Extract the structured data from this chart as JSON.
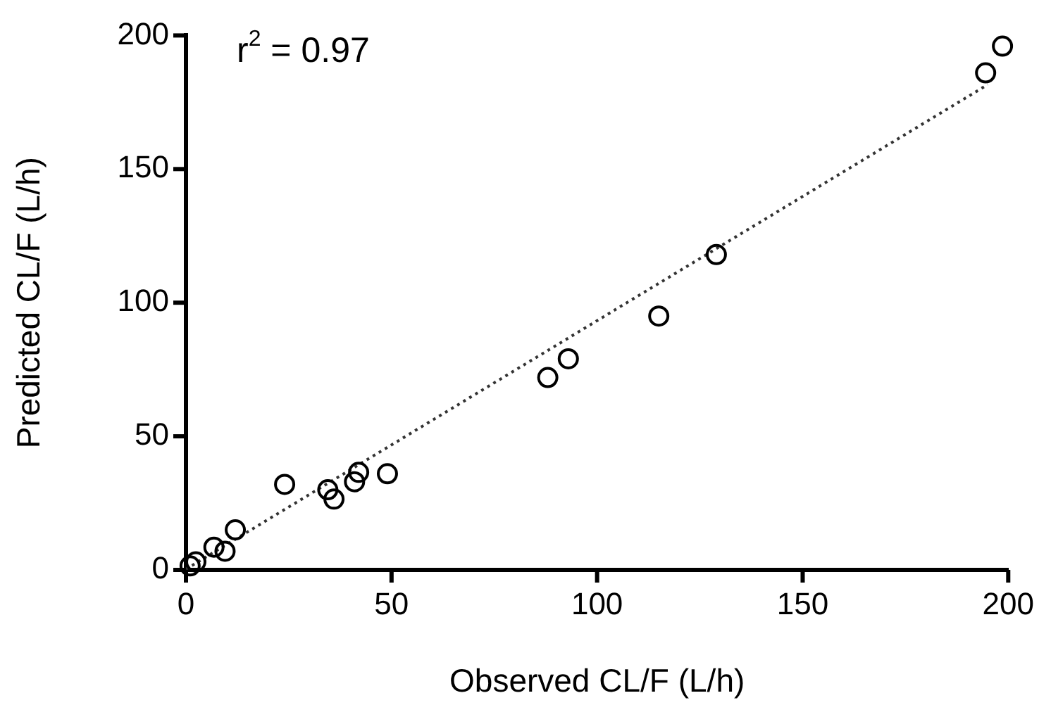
{
  "chart_data": {
    "type": "scatter",
    "xlabel": "Observed CL/F (L/h)",
    "ylabel": "Predicted CL/F (L/h)",
    "annotations": [
      "r$^{2}$ = 0.97"
    ],
    "xlim": [
      0,
      200
    ],
    "ylim": [
      0,
      200
    ],
    "xticks": [
      0,
      50,
      100,
      150,
      200
    ],
    "yticks": [
      0,
      50,
      100,
      150,
      200
    ],
    "grid": false,
    "legend": false,
    "marker": "circle",
    "series": [
      {
        "color": "#000000",
        "x": [
          1,
          2.4,
          6.8,
          9.5,
          12,
          24,
          34.5,
          36,
          41,
          42,
          49,
          88,
          93,
          115,
          129,
          194.5,
          198.6
        ],
        "values": [
          1.5,
          3,
          8.5,
          7,
          15,
          32,
          30,
          26.5,
          33,
          36.5,
          36,
          72,
          79,
          95,
          118,
          186,
          196
        ]
      },
      {
        "type": "line",
        "color": "#333333",
        "line_style": "dotted",
        "marker": "none",
        "x": [
          0,
          195
        ],
        "values": [
          0.3,
          181.6
        ]
      }
    ]
  }
}
